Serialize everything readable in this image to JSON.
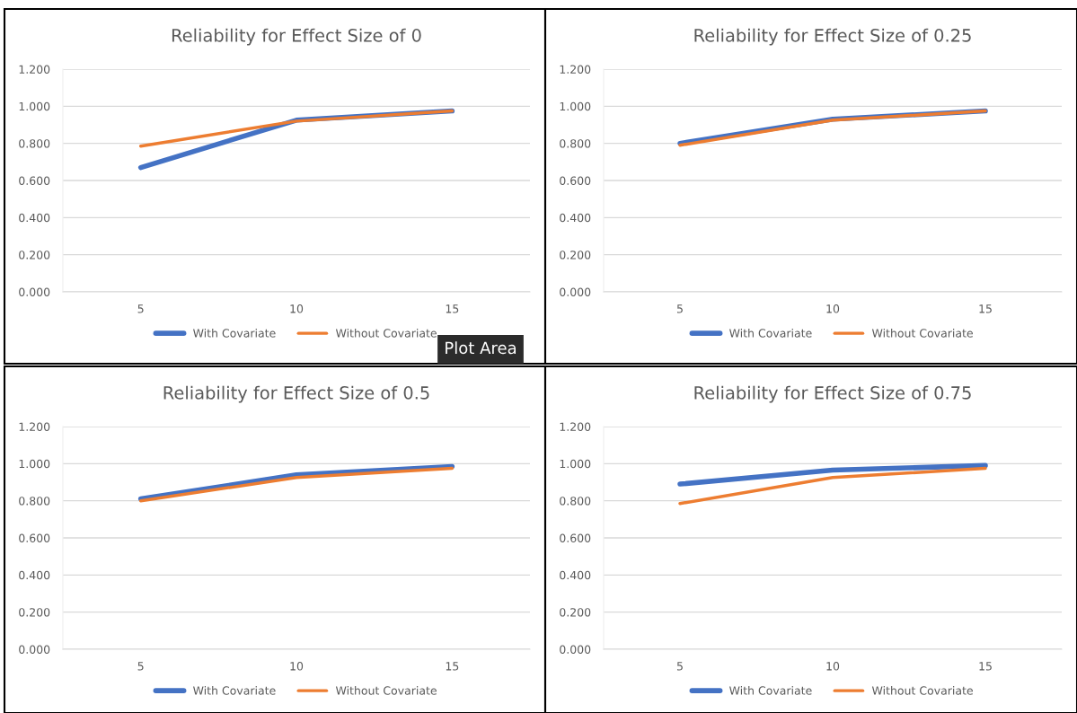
{
  "chart_data": [
    {
      "type": "line",
      "title": "Reliability for Effect Size of 0",
      "categories": [
        "5",
        "10",
        "15"
      ],
      "ylim": [
        0,
        1.2
      ],
      "yticks": [
        {
          "value": 0,
          "label": "0.000"
        },
        {
          "value": 0.2,
          "label": "0.200"
        },
        {
          "value": 0.4,
          "label": "0.400"
        },
        {
          "value": 0.6,
          "label": "0.600"
        },
        {
          "value": 0.8,
          "label": "0.800"
        },
        {
          "value": 1.0,
          "label": "1.000"
        },
        {
          "value": 1.2,
          "label": "1.200"
        }
      ],
      "grid": "y",
      "legend": "bottom",
      "marker": "none",
      "line_style": "solid",
      "series": [
        {
          "name": "With Covariate",
          "color": "#4472c4",
          "values": [
            0.67,
            0.925,
            0.975
          ]
        },
        {
          "name": "Without Covariate",
          "color": "#ed7d31",
          "values": [
            0.785,
            0.92,
            0.975
          ]
        }
      ],
      "annotations": [
        "Plot Area"
      ]
    },
    {
      "type": "line",
      "title": "Reliability for Effect Size of 0.25",
      "categories": [
        "5",
        "10",
        "15"
      ],
      "ylim": [
        0,
        1.2
      ],
      "yticks": [
        {
          "value": 0,
          "label": "0.000"
        },
        {
          "value": 0.2,
          "label": "0.200"
        },
        {
          "value": 0.4,
          "label": "0.400"
        },
        {
          "value": 0.6,
          "label": "0.600"
        },
        {
          "value": 0.8,
          "label": "0.800"
        },
        {
          "value": 1.0,
          "label": "1.000"
        },
        {
          "value": 1.2,
          "label": "1.200"
        }
      ],
      "grid": "y",
      "legend": "bottom",
      "marker": "none",
      "line_style": "solid",
      "series": [
        {
          "name": "With Covariate",
          "color": "#4472c4",
          "values": [
            0.8,
            0.93,
            0.975
          ]
        },
        {
          "name": "Without Covariate",
          "color": "#ed7d31",
          "values": [
            0.79,
            0.925,
            0.975
          ]
        }
      ]
    },
    {
      "type": "line",
      "title": "Reliability for Effect Size of 0.5",
      "categories": [
        "5",
        "10",
        "15"
      ],
      "ylim": [
        0,
        1.2
      ],
      "yticks": [
        {
          "value": 0,
          "label": "0.000"
        },
        {
          "value": 0.2,
          "label": "0.200"
        },
        {
          "value": 0.4,
          "label": "0.400"
        },
        {
          "value": 0.6,
          "label": "0.600"
        },
        {
          "value": 0.8,
          "label": "0.800"
        },
        {
          "value": 1.0,
          "label": "1.000"
        },
        {
          "value": 1.2,
          "label": "1.200"
        }
      ],
      "grid": "y",
      "legend": "bottom",
      "marker": "none",
      "line_style": "solid",
      "series": [
        {
          "name": "With Covariate",
          "color": "#4472c4",
          "values": [
            0.81,
            0.94,
            0.985
          ]
        },
        {
          "name": "Without Covariate",
          "color": "#ed7d31",
          "values": [
            0.8,
            0.925,
            0.975
          ]
        }
      ]
    },
    {
      "type": "line",
      "title": "Reliability for Effect Size of 0.75",
      "categories": [
        "5",
        "10",
        "15"
      ],
      "ylim": [
        0,
        1.2
      ],
      "yticks": [
        {
          "value": 0,
          "label": "0.000"
        },
        {
          "value": 0.2,
          "label": "0.200"
        },
        {
          "value": 0.4,
          "label": "0.400"
        },
        {
          "value": 0.6,
          "label": "0.600"
        },
        {
          "value": 0.8,
          "label": "0.800"
        },
        {
          "value": 1.0,
          "label": "1.000"
        },
        {
          "value": 1.2,
          "label": "1.200"
        }
      ],
      "grid": "y",
      "legend": "bottom",
      "marker": "none",
      "line_style": "solid",
      "series": [
        {
          "name": "With Covariate",
          "color": "#4472c4",
          "values": [
            0.89,
            0.965,
            0.99
          ]
        },
        {
          "name": "Without Covariate",
          "color": "#ed7d31",
          "values": [
            0.785,
            0.925,
            0.975
          ]
        }
      ]
    }
  ]
}
